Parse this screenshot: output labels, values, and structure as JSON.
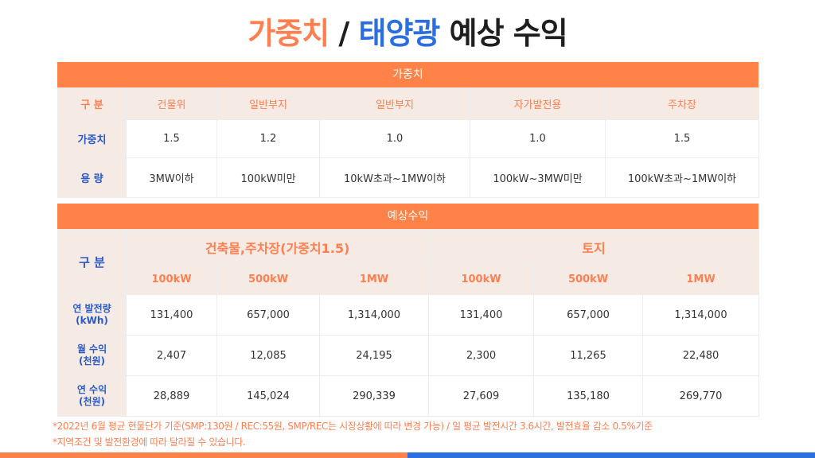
{
  "title": {
    "part1": "가중치",
    "sep": " / ",
    "part2": "태양광",
    "part3": " 예상 수익"
  },
  "weight_section": {
    "band_label": "가중치",
    "row_labels": [
      "구 분",
      "가중치",
      "용 량"
    ],
    "columns": [
      "건물위",
      "일반부지",
      "일반부지",
      "자가발전용",
      "주차장"
    ],
    "weights": [
      "1.5",
      "1.2",
      "1.0",
      "1.0",
      "1.5"
    ],
    "capacities": [
      "3MW이하",
      "100kW미만",
      "10kW초과~1MW이하",
      "100kW~3MW미만",
      "100kW초과~1MW이하"
    ]
  },
  "revenue_section": {
    "band_label": "예상수익",
    "corner_label": "구 분",
    "group_headers": [
      "건축물,주차장(가중치1.5)",
      "토지"
    ],
    "sub_headers": [
      "100kW",
      "500kW",
      "1MW",
      "100kW",
      "500kW",
      "1MW"
    ],
    "rows": [
      {
        "label_line1": "연 발전량",
        "label_line2": "(kWh)",
        "values": [
          "131,400",
          "657,000",
          "1,314,000",
          "131,400",
          "657,000",
          "1,314,000"
        ]
      },
      {
        "label_line1": "월 수익",
        "label_line2": "(천원)",
        "values": [
          "2,407",
          "12,085",
          "24,195",
          "2,300",
          "11,265",
          "22,480"
        ]
      },
      {
        "label_line1": "연 수익",
        "label_line2": "(천원)",
        "values": [
          "28,889",
          "145,024",
          "290,339",
          "27,609",
          "135,180",
          "269,770"
        ]
      }
    ]
  },
  "notes": [
    "*2022년 6월 평균 현물단가 기준(SMP:130원 / REC:55원, SMP/REC는 시장상황에 따라 변경 가능) / 일 평균 발전시간 3.6시간, 발전효율 감소 0.5%기준",
    "*지역조건 및 발전환경에 따라 달라질 수 있습니다."
  ],
  "colors": {
    "accent_orange": "#ff8349",
    "accent_blue": "#2a6ee0",
    "header_bg": "#f5ebe4"
  }
}
